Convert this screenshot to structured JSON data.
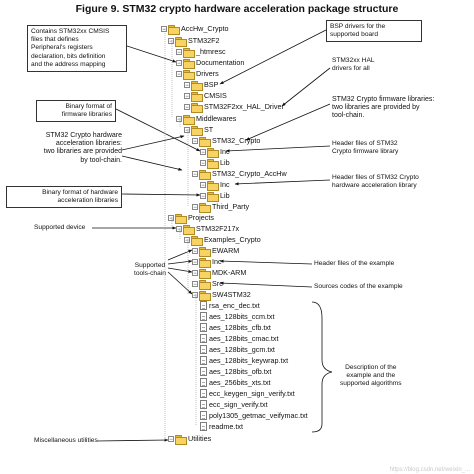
{
  "figure_title": "Figure 9. STM32 crypto hardware acceleration package structure",
  "tree": [
    {
      "label": "AccHw_Crypto",
      "type": "folder"
    },
    {
      "label": "STM32F2",
      "type": "folder"
    },
    {
      "label": "_htmresc",
      "type": "folder"
    },
    {
      "label": "Documentation",
      "type": "folder"
    },
    {
      "label": "Drivers",
      "type": "folder"
    },
    {
      "label": "BSP",
      "type": "folder"
    },
    {
      "label": "CMSIS",
      "type": "folder"
    },
    {
      "label": "STM32F2xx_HAL_Driver",
      "type": "folder"
    },
    {
      "label": "Middlewares",
      "type": "folder"
    },
    {
      "label": "ST",
      "type": "folder"
    },
    {
      "label": "STM32_Crypto",
      "type": "folder"
    },
    {
      "label": "Inc",
      "type": "folder"
    },
    {
      "label": "Lib",
      "type": "folder"
    },
    {
      "label": "STM32_Crypto_AccHw",
      "type": "folder"
    },
    {
      "label": "Inc",
      "type": "folder"
    },
    {
      "label": "Lib",
      "type": "folder"
    },
    {
      "label": "Third_Party",
      "type": "folder"
    },
    {
      "label": "Projects",
      "type": "folder"
    },
    {
      "label": "STM32F217x",
      "type": "folder"
    },
    {
      "label": "Examples_Crypto",
      "type": "folder"
    },
    {
      "label": "EWARM",
      "type": "folder"
    },
    {
      "label": "Inc",
      "type": "folder"
    },
    {
      "label": "MDK-ARM",
      "type": "folder"
    },
    {
      "label": "Src",
      "type": "folder"
    },
    {
      "label": "SW4STM32",
      "type": "folder"
    },
    {
      "label": "rsa_enc_dec.txt",
      "type": "file"
    },
    {
      "label": "aes_128bits_ccm.txt",
      "type": "file"
    },
    {
      "label": "aes_128bits_cfb.txt",
      "type": "file"
    },
    {
      "label": "aes_128bits_cmac.txt",
      "type": "file"
    },
    {
      "label": "aes_128bits_gcm.txt",
      "type": "file"
    },
    {
      "label": "aes_128bits_keywrap.txt",
      "type": "file"
    },
    {
      "label": "aes_128bits_ofb.txt",
      "type": "file"
    },
    {
      "label": "aes_256bits_xts.txt",
      "type": "file"
    },
    {
      "label": "ecc_keygen_sign_verify.txt",
      "type": "file"
    },
    {
      "label": "ecc_sign_verify.txt",
      "type": "file"
    },
    {
      "label": "poly1305_getmac_veifymac.txt",
      "type": "file"
    },
    {
      "label": "readme.txt",
      "type": "file"
    },
    {
      "label": "Utilities",
      "type": "folder"
    }
  ],
  "annotations": {
    "cmsis": [
      "Contains STM32xx CMSIS",
      "files that defines",
      "Peripheral's registers",
      "declaration, bits definition",
      "and the address mapping"
    ],
    "bsp": [
      "BSP drivers for the",
      "supported board"
    ],
    "hal": [
      "STM32xx HAL",
      "drivers for all"
    ],
    "binary_fw": [
      "Binary format of",
      "firmware libraries"
    ],
    "crypto_fw": [
      "STM32 Crypto firmware libraries:",
      "two libraries are provided by",
      "tool-chain."
    ],
    "hw_libs": [
      "STM32 Crypto hardware",
      "acceleration libraries:",
      "two libraries are provided",
      "by tool-chain."
    ],
    "hdr_fw": [
      "Header files of STM32",
      "Crypto firmware library"
    ],
    "binary_hw": [
      "Binary format of hardware",
      "acceleration libraries"
    ],
    "hdr_hw": [
      "Header files of STM32 Crypto",
      "hardware acceleration library"
    ],
    "device": "Supported device",
    "toolchain": [
      "Supported",
      "tools-chain"
    ],
    "hdr_example": "Header files of the example",
    "src_example": "Sources codes of the example",
    "description": [
      "Description of the",
      "example and the",
      "supported algorithms"
    ],
    "misc": "Miscellaneous utilities"
  },
  "watermark": "https://blog.csdn.net/weixin_..."
}
